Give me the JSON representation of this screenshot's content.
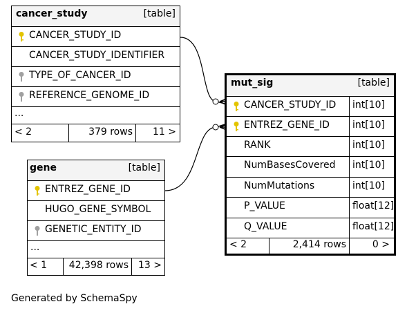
{
  "tables": {
    "cancer_study": {
      "name": "cancer_study",
      "kind": "[table]",
      "columns": [
        {
          "name": "CANCER_STUDY_ID",
          "key": "primary-key-icon"
        },
        {
          "name": "CANCER_STUDY_IDENTIFIER",
          "key": ""
        },
        {
          "name": "TYPE_OF_CANCER_ID",
          "key": "foreign-key-icon"
        },
        {
          "name": "REFERENCE_GENOME_ID",
          "key": "foreign-key-icon"
        }
      ],
      "more": "...",
      "footer": {
        "parents": "< 2",
        "rows": "379 rows",
        "children": "11 >"
      }
    },
    "gene": {
      "name": "gene",
      "kind": "[table]",
      "columns": [
        {
          "name": "ENTREZ_GENE_ID",
          "key": "primary-key-icon"
        },
        {
          "name": "HUGO_GENE_SYMBOL",
          "key": ""
        },
        {
          "name": "GENETIC_ENTITY_ID",
          "key": "foreign-key-icon"
        }
      ],
      "more": "...",
      "footer": {
        "parents": "< 1",
        "rows": "42,398 rows",
        "children": "13 >"
      }
    },
    "mut_sig": {
      "name": "mut_sig",
      "kind": "[table]",
      "columns": [
        {
          "name": "CANCER_STUDY_ID",
          "type": "int[10]",
          "key": "primary-key-icon"
        },
        {
          "name": "ENTREZ_GENE_ID",
          "type": "int[10]",
          "key": "primary-key-icon"
        },
        {
          "name": "RANK",
          "type": "int[10]",
          "key": ""
        },
        {
          "name": "NumBasesCovered",
          "type": "int[10]",
          "key": ""
        },
        {
          "name": "NumMutations",
          "type": "int[10]",
          "key": ""
        },
        {
          "name": "P_VALUE",
          "type": "float[12]",
          "key": ""
        },
        {
          "name": "Q_VALUE",
          "type": "float[12]",
          "key": ""
        }
      ],
      "footer": {
        "parents": "< 2",
        "rows": "2,414 rows",
        "children": "0 >"
      }
    }
  },
  "footer_text": "Generated by SchemaSpy",
  "colors": {
    "primary_key": "#e3c400",
    "foreign_key": "#a0a0a0",
    "header_bg": "#f4f4f4"
  }
}
